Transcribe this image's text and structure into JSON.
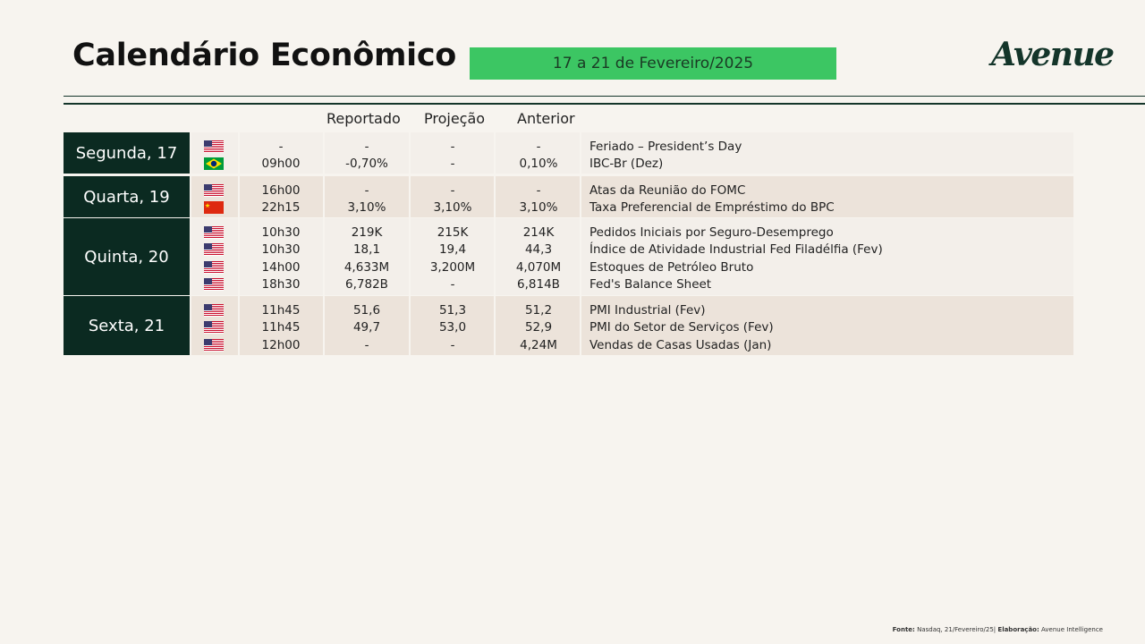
{
  "header": {
    "title": "Calendário Econômico",
    "date_range": "17 a 21 de Fevereiro/2025",
    "logo": "Avenue"
  },
  "columns": {
    "reported": "Reportado",
    "projection": "Projeção",
    "previous": "Anterior"
  },
  "colors": {
    "day_bg": "#0b2a21",
    "accent_green": "#3cc663",
    "row_light": "#f3efea",
    "row_dark": "#ece3da",
    "page_bg": "#f7f4ef"
  },
  "groups": [
    {
      "day": "Segunda, 17",
      "rows": [
        {
          "flag": "us-flag-icon",
          "time": "-",
          "reported": "-",
          "projection": "-",
          "previous": "-",
          "event": "Feriado – President’s Day"
        },
        {
          "flag": "br-flag-icon",
          "time": "09h00",
          "reported": "-0,70%",
          "projection": "-",
          "previous": "0,10%",
          "event": "IBC-Br (Dez)"
        }
      ]
    },
    {
      "day": "Quarta, 19",
      "rows": [
        {
          "flag": "us-flag-icon",
          "time": "16h00",
          "reported": "-",
          "projection": "-",
          "previous": "-",
          "event": "Atas da Reunião do FOMC"
        },
        {
          "flag": "cn-flag-icon",
          "time": "22h15",
          "reported": "3,10%",
          "projection": "3,10%",
          "previous": "3,10%",
          "event": "Taxa Preferencial de Empréstimo do BPC"
        }
      ]
    },
    {
      "day": "Quinta, 20",
      "rows": [
        {
          "flag": "us-flag-icon",
          "time": "10h30",
          "reported": "219K",
          "projection": "215K",
          "previous": "214K",
          "event": "Pedidos Iniciais por Seguro-Desemprego"
        },
        {
          "flag": "us-flag-icon",
          "time": "10h30",
          "reported": "18,1",
          "projection": "19,4",
          "previous": "44,3",
          "event": "Índice de Atividade Industrial Fed Filadélfia (Fev)"
        },
        {
          "flag": "us-flag-icon",
          "time": "14h00",
          "reported": "4,633M",
          "projection": "3,200M",
          "previous": "4,070M",
          "event": "Estoques de Petróleo Bruto"
        },
        {
          "flag": "us-flag-icon",
          "time": "18h30",
          "reported": "6,782B",
          "projection": "-",
          "previous": "6,814B",
          "event": "Fed's Balance Sheet"
        }
      ]
    },
    {
      "day": "Sexta, 21",
      "rows": [
        {
          "flag": "us-flag-icon",
          "time": "11h45",
          "reported": "51,6",
          "projection": "51,3",
          "previous": "51,2",
          "event": "PMI Industrial (Fev)"
        },
        {
          "flag": "us-flag-icon",
          "time": "11h45",
          "reported": "49,7",
          "projection": "53,0",
          "previous": "52,9",
          "event": "PMI do Setor de Serviços (Fev)"
        },
        {
          "flag": "us-flag-icon",
          "time": "12h00",
          "reported": "-",
          "projection": "-",
          "previous": "4,24M",
          "event": "Vendas de Casas Usadas (Jan)"
        }
      ]
    }
  ],
  "footer": {
    "source_label": "Fonte:",
    "source_value": "Nasdaq, 21/Fevereiro/25|",
    "author_label": "Elaboração:",
    "author_value": "Avenue Intelligence"
  }
}
